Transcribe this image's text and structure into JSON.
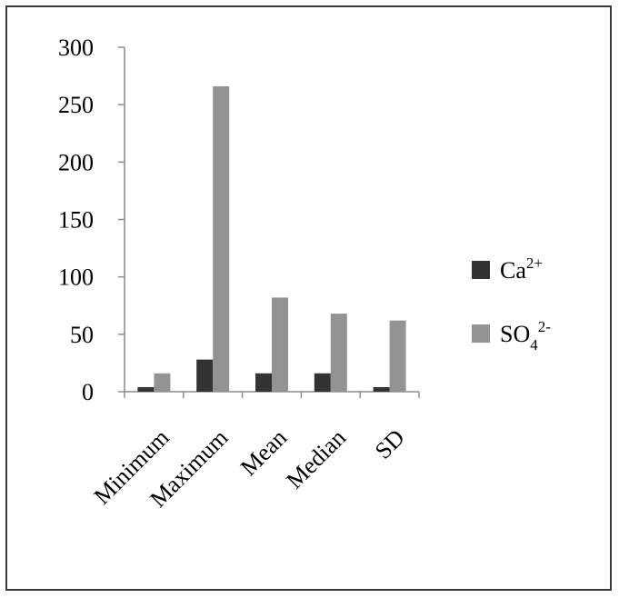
{
  "chart_data": {
    "type": "bar",
    "categories": [
      "Minimum",
      "Maximum",
      "Mean",
      "Median",
      "SD"
    ],
    "series": [
      {
        "name": "Ca",
        "superscript": "2+",
        "subscript": "",
        "color": "#333333",
        "values": [
          4,
          28,
          16,
          16,
          4
        ]
      },
      {
        "name": "SO",
        "superscript": "2-",
        "subscript": "4",
        "color": "#939393",
        "values": [
          16,
          266,
          82,
          68,
          62
        ]
      }
    ],
    "yticks": [
      "0",
      "50",
      "100",
      "150",
      "200",
      "250",
      "300"
    ],
    "ylim": [
      0,
      300
    ],
    "grid": false,
    "legend": "right"
  }
}
